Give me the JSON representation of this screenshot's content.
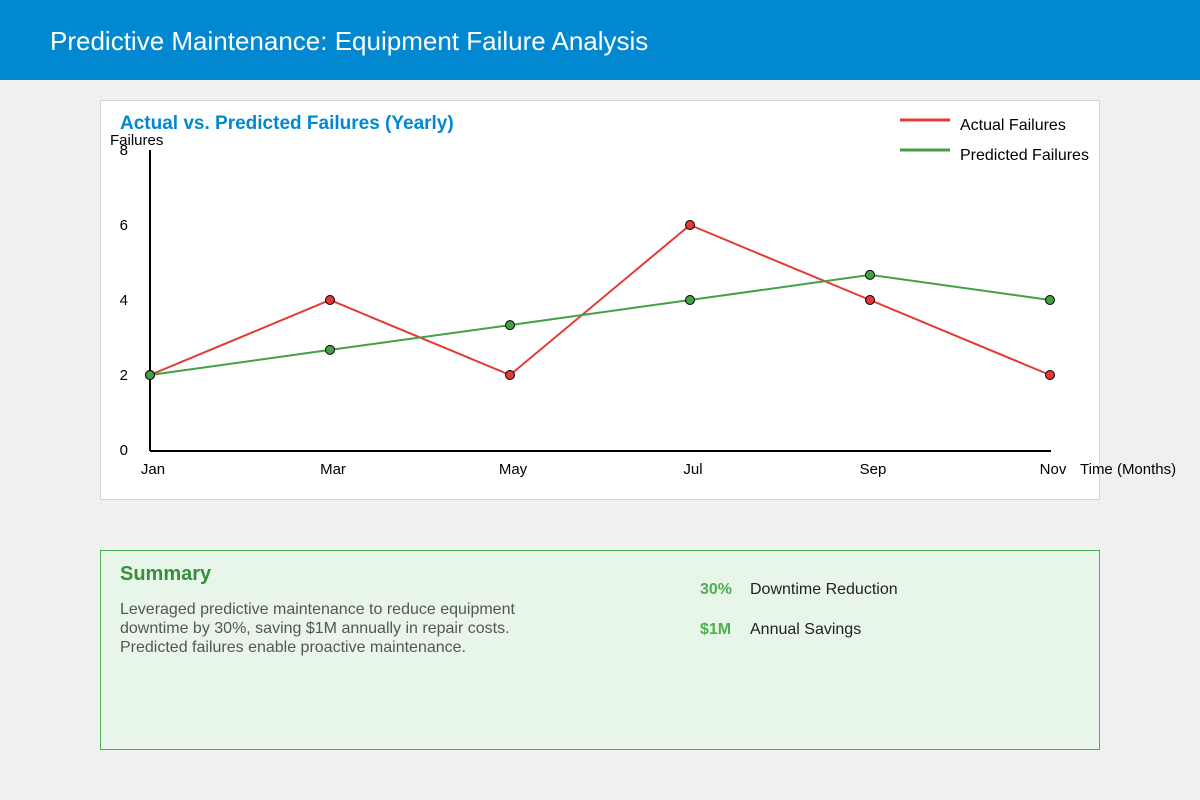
{
  "header": {
    "title": "Predictive Maintenance: Equipment Failure Analysis"
  },
  "chart_data": {
    "type": "line",
    "title": "Actual vs. Predicted Failures (Yearly)",
    "xlabel": "Time (Months)",
    "ylabel": "Failures",
    "categories": [
      "Jan",
      "Mar",
      "May",
      "Jul",
      "Sep",
      "Nov"
    ],
    "ylim": [
      0,
      8
    ],
    "yticks": [
      0,
      2,
      4,
      6,
      8
    ],
    "grid": false,
    "legend_position": "top-right",
    "series": [
      {
        "name": "Actual Failures",
        "color": "#e53935",
        "values": [
          2,
          4,
          2,
          6,
          4,
          2
        ]
      },
      {
        "name": "Predicted Failures",
        "color": "#43a047",
        "values": [
          2,
          2.67,
          3.33,
          4,
          4.67,
          4
        ]
      }
    ]
  },
  "summary": {
    "title": "Summary",
    "text": "Leveraged predictive maintenance to reduce equipment downtime by 30%, saving $1M annually in repair costs. Predicted failures enable proactive maintenance.",
    "metrics": [
      {
        "value": "30%",
        "label": "Downtime Reduction"
      },
      {
        "value": "$1M",
        "label": "Annual Savings"
      }
    ]
  }
}
